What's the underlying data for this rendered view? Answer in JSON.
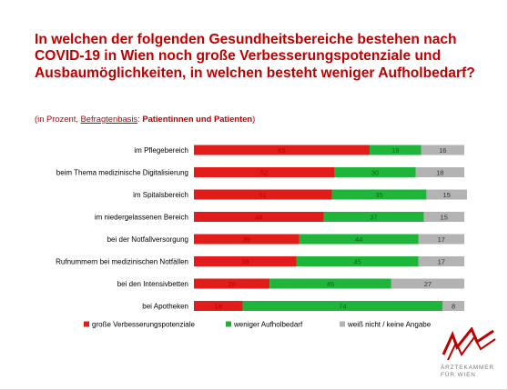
{
  "header": {
    "title": "In welchen der folgenden Gesundheitsbereiche bestehen nach COVID-19 in Wien noch große Verbesserungspotenziale und Ausbaumöglichkeiten, in welchen besteht weniger Aufholbedarf?",
    "subtitle_prefix": "(in Prozent, ",
    "subtitle_basis": "Befragtenbasis",
    "subtitle_colon": ": ",
    "subtitle_group": "Patientinnen und Patienten",
    "subtitle_suffix": ")"
  },
  "chart_data": {
    "type": "bar",
    "orientation": "horizontal",
    "stacked": true,
    "categories": [
      "im Pflegebereich",
      "beim Thema medizinische Digitalisierung",
      "im Spitalsbereich",
      "im niedergelassenen Bereich",
      "bei der Notfallversorgung",
      "Rufnummern bei medizinischen Notfällen",
      "bei den Intensivbetten",
      "bei Apotheken"
    ],
    "series": [
      {
        "name": "große Verbesserungspotenziale",
        "values": [
          65,
          52,
          51,
          48,
          39,
          38,
          28,
          18
        ],
        "color": "#e21b1b"
      },
      {
        "name": "weniger Aufholbedarf",
        "values": [
          19,
          30,
          35,
          37,
          44,
          45,
          45,
          74
        ],
        "color": "#1eb53a"
      },
      {
        "name": "weiß nicht / keine Angabe",
        "values": [
          16,
          18,
          15,
          15,
          17,
          17,
          27,
          8
        ],
        "color": "#b3b3b3"
      }
    ],
    "xlim": [
      0,
      100
    ],
    "grid": false,
    "legend": "bottom"
  },
  "logo": {
    "line1": "ÄRZTEKAMMER",
    "line2": "FÜR WIEN",
    "color": "#c00000"
  }
}
